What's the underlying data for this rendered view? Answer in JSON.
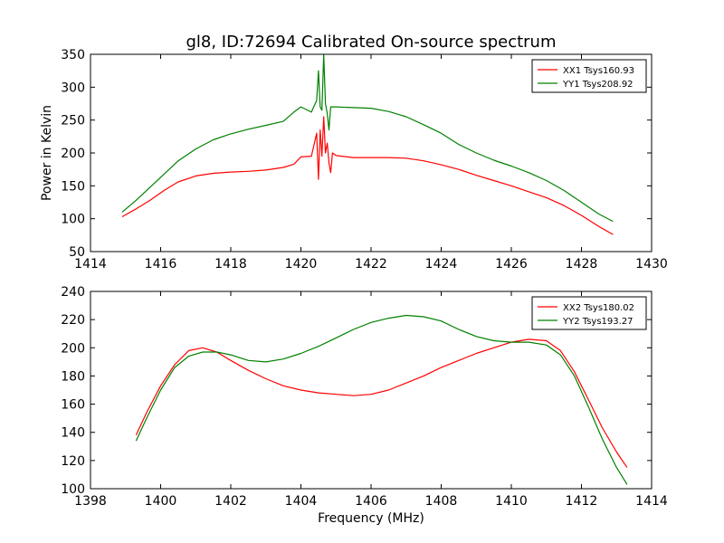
{
  "chart_data": [
    {
      "type": "line",
      "title": "gl8, ID:72694 Calibrated On-source spectrum",
      "xlabel": "",
      "ylabel": "Power in Kelvin",
      "xlim": [
        1414,
        1430
      ],
      "ylim": [
        50,
        350
      ],
      "xticks": [
        1414,
        1416,
        1418,
        1420,
        1422,
        1424,
        1426,
        1428,
        1430
      ],
      "yticks": [
        50,
        100,
        150,
        200,
        250,
        300,
        350
      ],
      "grid": false,
      "legend": "top-right",
      "series": [
        {
          "name": "XX1 Tsys160.93",
          "color": "#ff0000",
          "x": [
            1414.9,
            1415.3,
            1415.7,
            1416.1,
            1416.5,
            1417.0,
            1417.5,
            1418.0,
            1418.5,
            1419.0,
            1419.5,
            1419.8,
            1420.0,
            1420.3,
            1420.45,
            1420.5,
            1420.55,
            1420.6,
            1420.65,
            1420.7,
            1420.75,
            1420.8,
            1420.85,
            1420.9,
            1421.0,
            1421.5,
            1422.0,
            1422.5,
            1423.0,
            1423.5,
            1424.0,
            1424.5,
            1425.0,
            1425.5,
            1426.0,
            1426.5,
            1427.0,
            1427.5,
            1428.0,
            1428.5,
            1428.9
          ],
          "y": [
            103,
            115,
            128,
            143,
            156,
            165,
            169,
            171,
            172,
            174,
            178,
            183,
            194,
            195,
            230,
            160,
            235,
            195,
            255,
            200,
            215,
            185,
            170,
            200,
            196,
            193,
            193,
            193,
            192,
            188,
            182,
            175,
            166,
            158,
            150,
            141,
            132,
            120,
            105,
            88,
            76
          ]
        },
        {
          "name": "YY1 Tsys208.92",
          "color": "#008000",
          "x": [
            1414.9,
            1415.3,
            1415.7,
            1416.1,
            1416.5,
            1417.0,
            1417.5,
            1418.0,
            1418.5,
            1419.0,
            1419.5,
            1419.8,
            1420.0,
            1420.3,
            1420.45,
            1420.5,
            1420.55,
            1420.6,
            1420.65,
            1420.7,
            1420.75,
            1420.8,
            1420.85,
            1420.9,
            1421.0,
            1421.5,
            1422.0,
            1422.5,
            1423.0,
            1423.5,
            1424.0,
            1424.5,
            1425.0,
            1425.5,
            1426.0,
            1426.5,
            1427.0,
            1427.5,
            1428.0,
            1428.5,
            1428.9
          ],
          "y": [
            110,
            128,
            148,
            168,
            188,
            206,
            220,
            229,
            236,
            242,
            248,
            262,
            270,
            262,
            280,
            325,
            270,
            265,
            350,
            275,
            260,
            235,
            270,
            270,
            270,
            269,
            268,
            263,
            255,
            243,
            230,
            213,
            200,
            189,
            180,
            170,
            158,
            143,
            125,
            107,
            96
          ]
        }
      ]
    },
    {
      "type": "line",
      "title": "",
      "xlabel": "Frequency (MHz)",
      "ylabel": "",
      "xlim": [
        1398,
        1414
      ],
      "ylim": [
        100,
        240
      ],
      "xticks": [
        1398,
        1400,
        1402,
        1404,
        1406,
        1408,
        1410,
        1412,
        1414
      ],
      "yticks": [
        100,
        120,
        140,
        160,
        180,
        200,
        220,
        240
      ],
      "grid": false,
      "legend": "top-right",
      "series": [
        {
          "name": "XX2 Tsys180.02",
          "color": "#ff0000",
          "x": [
            1399.3,
            1399.6,
            1400.0,
            1400.4,
            1400.8,
            1401.2,
            1401.6,
            1402.0,
            1402.5,
            1403.0,
            1403.5,
            1404.0,
            1404.5,
            1405.0,
            1405.5,
            1406.0,
            1406.5,
            1407.0,
            1407.5,
            1408.0,
            1408.5,
            1409.0,
            1409.5,
            1410.0,
            1410.5,
            1411.0,
            1411.4,
            1411.8,
            1412.2,
            1412.6,
            1413.0,
            1413.3
          ],
          "y": [
            138,
            154,
            173,
            188,
            198,
            200,
            197,
            191,
            184,
            178,
            173,
            170,
            168,
            167,
            166,
            167,
            170,
            175,
            180,
            186,
            191,
            196,
            200,
            204,
            206,
            205,
            198,
            183,
            163,
            143,
            126,
            115
          ]
        },
        {
          "name": "YY2 Tsys193.27",
          "color": "#008000",
          "x": [
            1399.3,
            1399.6,
            1400.0,
            1400.4,
            1400.8,
            1401.2,
            1401.6,
            1402.0,
            1402.5,
            1403.0,
            1403.5,
            1404.0,
            1404.5,
            1405.0,
            1405.5,
            1406.0,
            1406.5,
            1407.0,
            1407.5,
            1408.0,
            1408.5,
            1409.0,
            1409.5,
            1410.0,
            1410.5,
            1411.0,
            1411.4,
            1411.8,
            1412.2,
            1412.6,
            1413.0,
            1413.3
          ],
          "y": [
            134,
            150,
            170,
            186,
            194,
            197,
            197,
            195,
            191,
            190,
            192,
            196,
            201,
            207,
            213,
            218,
            221,
            223,
            222,
            219,
            213,
            208,
            205,
            204,
            204,
            202,
            195,
            180,
            158,
            135,
            115,
            103
          ]
        }
      ]
    }
  ]
}
